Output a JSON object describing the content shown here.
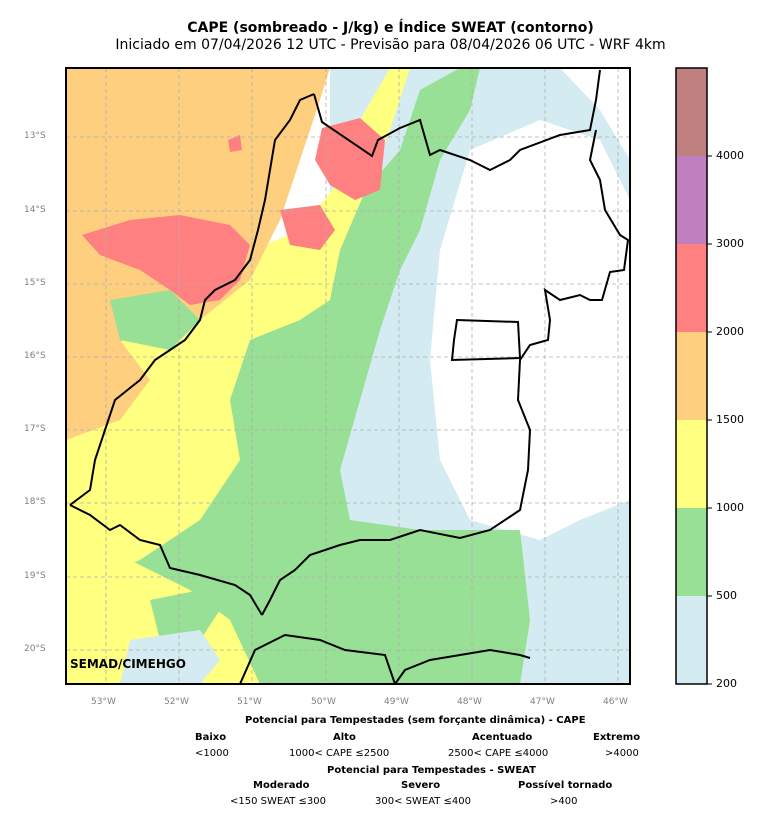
{
  "header": {
    "title": "CAPE (sombreado - J/kg) e Índice SWEAT (contorno)",
    "subtitle": "Iniciado em 07/04/2026 12 UTC - Previsão para 08/04/2026 06 UTC - WRF 4km"
  },
  "map": {
    "lat_labels": [
      "13°S",
      "14°S",
      "15°S",
      "16°S",
      "17°S",
      "18°S",
      "19°S",
      "20°S"
    ],
    "lon_labels": [
      "53°W",
      "52°W",
      "51°W",
      "50°W",
      "49°W",
      "48°W",
      "47°W",
      "46°W"
    ],
    "credit": "SEMAD/CIMEHGO",
    "grid": true,
    "colors": {
      "cape_200_500": "#d4ebf2",
      "cape_500_1000": "#98e095",
      "cape_1000_1500": "#ffff80",
      "cape_1500_2000": "#ffcf80",
      "cape_2000_3000": "#ff8080",
      "cape_3000_4000": "#c080c0",
      "cape_4000_plus": "#c08080",
      "border": "#000000",
      "grid": "#b0b0b0"
    }
  },
  "colorbar": {
    "ticks": [
      "200",
      "500",
      "1000",
      "1500",
      "2000",
      "3000",
      "4000"
    ],
    "colors": [
      "#d4ebf2",
      "#98e095",
      "#ffff80",
      "#ffcf80",
      "#ff8080",
      "#c080c0",
      "#c08080"
    ]
  },
  "legend": {
    "cape_title": "Potencial para Tempestades (sem forçante dinâmica) - CAPE",
    "cape_categories": [
      {
        "name": "Baixo",
        "range": "<1000"
      },
      {
        "name": "Alto",
        "range": "1000< CAPE ≤2500"
      },
      {
        "name": "Acentuado",
        "range": "2500< CAPE ≤4000"
      },
      {
        "name": "Extremo",
        "range": ">4000"
      }
    ],
    "sweat_title": "Potencial para Tempestades - SWEAT",
    "sweat_categories": [
      {
        "name": "Moderado",
        "range": "<150 SWEAT ≤300"
      },
      {
        "name": "Severo",
        "range": "300< SWEAT ≤400"
      },
      {
        "name": "Possível tornado",
        "range": ">400"
      }
    ]
  }
}
